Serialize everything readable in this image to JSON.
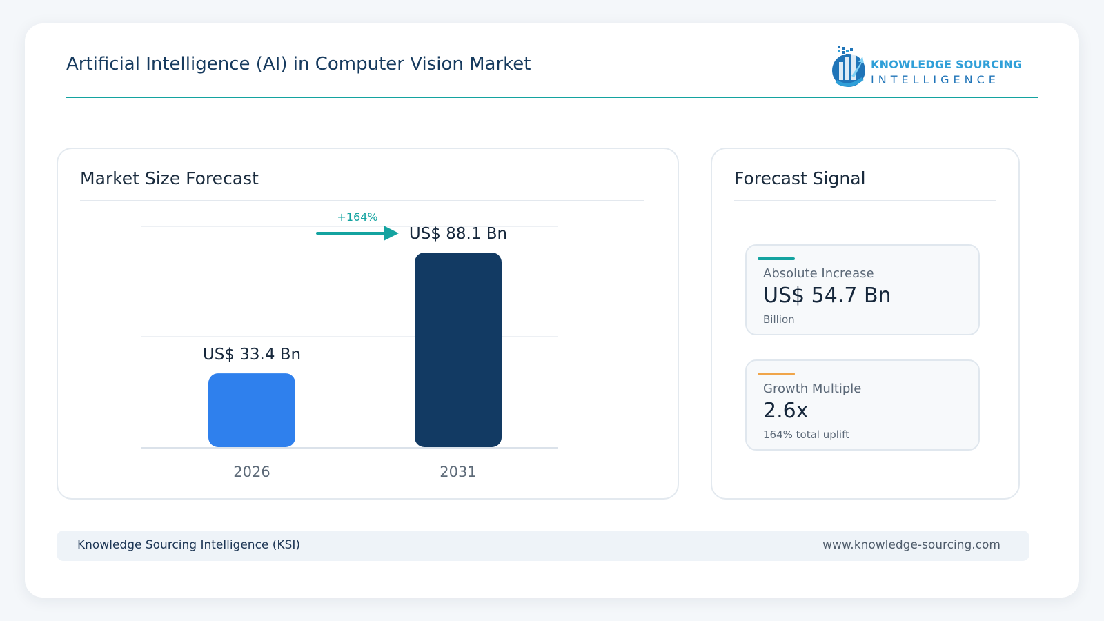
{
  "header": {
    "title": "Artificial Intelligence (AI) in Computer Vision Market",
    "logo": {
      "line1": "KNOWLEDGE SOURCING",
      "line2": "INTELLIGENCE",
      "icon": "ksi-building-globe-logo"
    }
  },
  "left_panel": {
    "title": "Market Size Forecast"
  },
  "right_panel": {
    "title": "Forecast Signal",
    "metrics": [
      {
        "label": "Absolute Increase",
        "value": "US$ 54.7 Bn",
        "sub": "Billion",
        "accent": "#14a3a0"
      },
      {
        "label": "Growth Multiple",
        "value": "2.6x",
        "sub": "164% total uplift",
        "accent": "#f0a54a"
      }
    ]
  },
  "footer": {
    "left": "Knowledge Sourcing Intelligence (KSI)",
    "right": "www.knowledge-sourcing.com"
  },
  "colors": {
    "accent_teal": "#14a3a0",
    "bar_2026": "#2f80ed",
    "bar_2031": "#123a63"
  },
  "chart_data": {
    "type": "bar",
    "categories": [
      "2026",
      "2031"
    ],
    "values": [
      33.4,
      88.1
    ],
    "value_labels": [
      "US$ 33.4 Bn",
      "US$ 88.1 Bn"
    ],
    "bar_colors": [
      "#2f80ed",
      "#123a63"
    ],
    "ylim": [
      0,
      100
    ],
    "grid": true,
    "annotation": {
      "text": "+164%",
      "color": "#14a3a0"
    }
  }
}
